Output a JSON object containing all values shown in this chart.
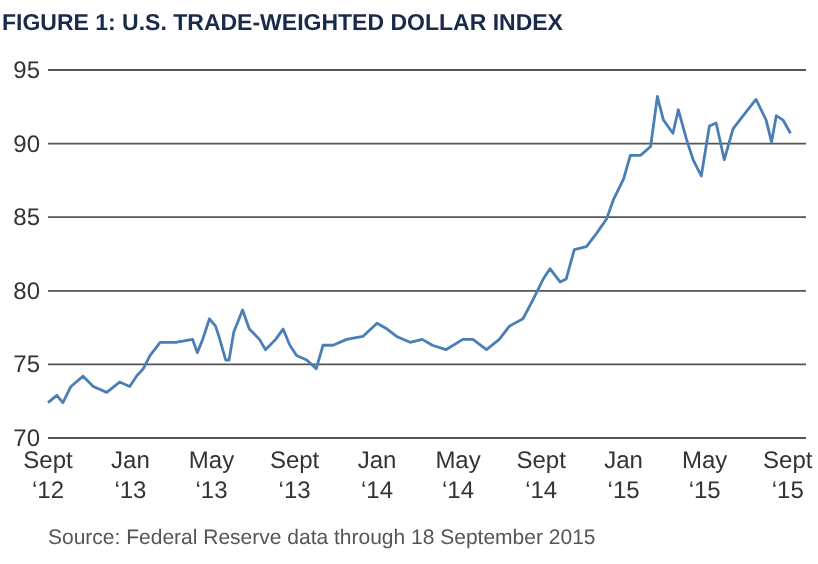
{
  "chart_data": {
    "type": "line",
    "title": "FIGURE 1: U.S. TRADE-WEIGHTED DOLLAR INDEX",
    "annotations": [
      "Source: Federal Reserve data through 18 September 2015"
    ],
    "x": [
      "2012-09-01",
      "2012-09-14",
      "2012-09-23",
      "2012-10-05",
      "2012-10-23",
      "2012-11-07",
      "2012-11-27",
      "2012-12-16",
      "2012-12-31",
      "2013-01-10",
      "2013-01-20",
      "2013-01-30",
      "2013-02-14",
      "2013-03-09",
      "2013-04-03",
      "2013-04-10",
      "2013-04-18",
      "2013-04-28",
      "2013-05-07",
      "2013-05-12",
      "2013-05-22",
      "2013-05-27",
      "2013-06-03",
      "2013-06-16",
      "2013-06-26",
      "2013-07-11",
      "2013-07-20",
      "2013-08-04",
      "2013-08-15",
      "2013-08-25",
      "2013-09-04",
      "2013-09-19",
      "2013-10-03",
      "2013-10-13",
      "2013-10-28",
      "2013-11-17",
      "2013-12-11",
      "2014-01-01",
      "2014-01-16",
      "2014-01-30",
      "2014-02-19",
      "2014-03-09",
      "2014-03-24",
      "2014-04-13",
      "2014-05-08",
      "2014-05-23",
      "2014-06-12",
      "2014-07-01",
      "2014-07-16",
      "2014-08-05",
      "2014-08-20",
      "2014-09-04",
      "2014-09-14",
      "2014-09-29",
      "2014-10-08",
      "2014-10-20",
      "2014-11-07",
      "2014-11-22",
      "2014-12-07",
      "2014-12-17",
      "2015-01-01",
      "2015-01-11",
      "2015-01-26",
      "2015-02-10",
      "2015-02-20",
      "2015-03-01",
      "2015-03-15",
      "2015-03-23",
      "2015-04-04",
      "2015-04-14",
      "2015-04-26",
      "2015-05-08",
      "2015-05-18",
      "2015-05-30",
      "2015-06-12",
      "2015-06-27",
      "2015-07-16",
      "2015-07-31",
      "2015-08-08",
      "2015-08-15",
      "2015-08-25",
      "2015-09-05"
    ],
    "series": [
      {
        "color": "#4a7fb5",
        "values": [
          72.4,
          72.9,
          72.4,
          73.5,
          74.2,
          73.5,
          73.1,
          73.8,
          73.5,
          74.2,
          74.7,
          75.6,
          76.5,
          76.5,
          76.7,
          75.8,
          76.7,
          78.1,
          77.6,
          76.9,
          75.3,
          75.3,
          77.2,
          78.7,
          77.4,
          76.7,
          76.0,
          76.7,
          77.4,
          76.3,
          75.6,
          75.3,
          74.7,
          76.3,
          76.3,
          76.7,
          76.9,
          77.8,
          77.4,
          76.9,
          76.5,
          76.7,
          76.3,
          76.0,
          76.7,
          76.7,
          76.0,
          76.7,
          77.6,
          78.1,
          79.4,
          80.8,
          81.5,
          80.6,
          80.8,
          82.8,
          83.0,
          83.9,
          84.9,
          86.2,
          87.6,
          89.2,
          89.2,
          89.8,
          93.2,
          91.6,
          90.7,
          92.3,
          90.3,
          88.9,
          87.8,
          91.2,
          91.4,
          88.9,
          91.0,
          91.9,
          93.0,
          91.6,
          90.1,
          91.9,
          91.6,
          90.7
        ]
      }
    ],
    "xlim": [
      "2012-09-01",
      "2015-09-28"
    ],
    "xticks": [
      {
        "value": "2012-09-01",
        "label": "Sept ‘12"
      },
      {
        "value": "2013-01-01",
        "label": "Jan ‘13"
      },
      {
        "value": "2013-05-01",
        "label": "May ‘13"
      },
      {
        "value": "2013-09-01",
        "label": "Sept ‘13"
      },
      {
        "value": "2014-01-01",
        "label": "Jan ‘14"
      },
      {
        "value": "2014-05-01",
        "label": "May ‘14"
      },
      {
        "value": "2014-09-01",
        "label": "Sept ‘14"
      },
      {
        "value": "2015-01-01",
        "label": "Jan ‘15"
      },
      {
        "value": "2015-05-01",
        "label": "May ‘15"
      },
      {
        "value": "2015-09-01",
        "label": "Sept ‘15"
      }
    ],
    "ylim": [
      70,
      95
    ],
    "yticks": [
      70,
      75,
      80,
      85,
      90,
      95
    ],
    "grid": "y",
    "line_style": "solid"
  }
}
